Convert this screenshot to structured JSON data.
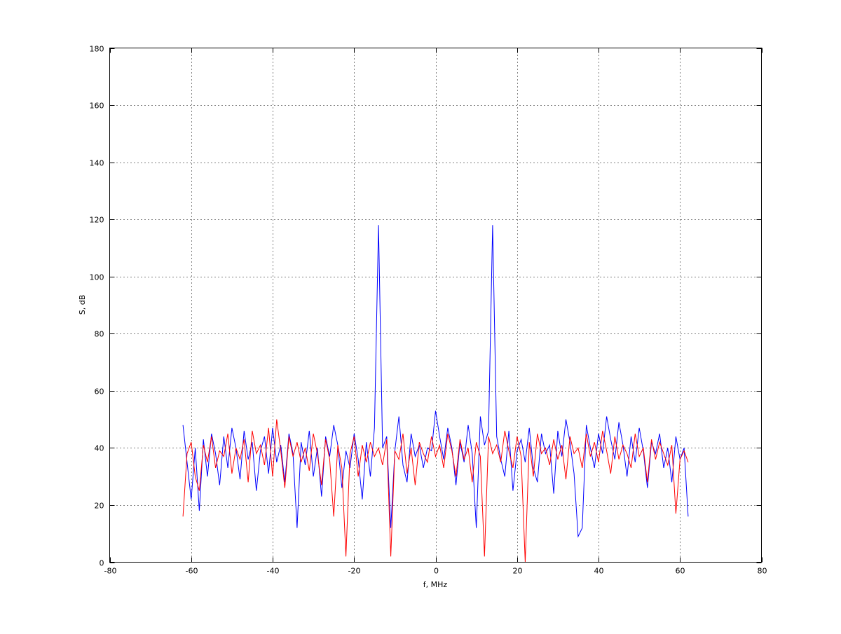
{
  "chart_data": {
    "type": "line",
    "title": "",
    "xlabel": "f, MHz",
    "ylabel": "S, dB",
    "xlim": [
      -80,
      80
    ],
    "ylim": [
      0,
      180
    ],
    "xticks": [
      -80,
      -60,
      -40,
      -20,
      0,
      20,
      40,
      60,
      80
    ],
    "yticks": [
      0,
      20,
      40,
      60,
      80,
      100,
      120,
      140,
      160,
      180
    ],
    "grid": true,
    "x_start": -62,
    "x_step": 1,
    "series": [
      {
        "color": "#0000ff",
        "values": [
          48,
          35,
          22,
          40,
          18,
          43,
          30,
          45,
          38,
          27,
          44,
          33,
          47,
          40,
          29,
          46,
          36,
          42,
          25,
          39,
          44,
          31,
          47,
          35,
          41,
          28,
          45,
          38,
          12,
          42,
          34,
          46,
          30,
          40,
          23,
          44,
          37,
          48,
          41,
          26,
          39,
          33,
          45,
          36,
          22,
          42,
          30,
          47,
          118,
          40,
          44,
          12,
          39,
          51,
          34,
          28,
          45,
          37,
          41,
          33,
          40,
          39,
          53,
          44,
          36,
          47,
          40,
          27,
          42,
          35,
          48,
          38,
          12,
          51,
          41,
          46,
          118,
          44,
          36,
          30,
          46,
          25,
          39,
          43,
          35,
          47,
          33,
          28,
          45,
          38,
          41,
          24,
          46,
          37,
          50,
          42,
          31,
          9,
          12,
          48,
          40,
          33,
          45,
          38,
          51,
          43,
          36,
          49,
          41,
          30,
          44,
          35,
          47,
          39,
          26,
          42,
          38,
          45,
          33,
          40,
          28,
          44,
          36,
          40,
          16
        ]
      },
      {
        "color": "#ff0000",
        "values": [
          16,
          38,
          42,
          30,
          25,
          41,
          35,
          44,
          33,
          39,
          37,
          45,
          31,
          40,
          36,
          43,
          28,
          46,
          38,
          41,
          34,
          47,
          30,
          50,
          39,
          26,
          44,
          37,
          42,
          35,
          40,
          32,
          45,
          38,
          27,
          43,
          36,
          16,
          41,
          33,
          2,
          38,
          44,
          30,
          41,
          35,
          42,
          37,
          40,
          34,
          43,
          2,
          39,
          36,
          45,
          31,
          40,
          27,
          42,
          38,
          35,
          44,
          37,
          41,
          33,
          45,
          39,
          30,
          43,
          36,
          40,
          28,
          42,
          37,
          2,
          44,
          38,
          41,
          35,
          46,
          39,
          33,
          44,
          37,
          0,
          42,
          30,
          45,
          38,
          40,
          34,
          43,
          36,
          41,
          29,
          44,
          38,
          40,
          33,
          45,
          37,
          42,
          35,
          46,
          39,
          31,
          44,
          36,
          41,
          38,
          33,
          45,
          37,
          40,
          28,
          43,
          36,
          42,
          38,
          34,
          41,
          17,
          36,
          39,
          35
        ]
      }
    ]
  }
}
